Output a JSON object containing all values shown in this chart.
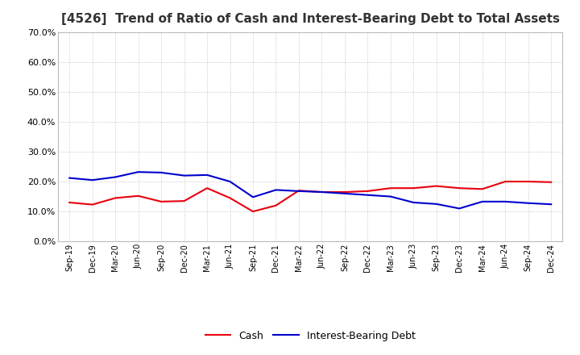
{
  "title": "[4526]  Trend of Ratio of Cash and Interest-Bearing Debt to Total Assets",
  "labels": [
    "Sep-19",
    "Dec-19",
    "Mar-20",
    "Jun-20",
    "Sep-20",
    "Dec-20",
    "Mar-21",
    "Jun-21",
    "Sep-21",
    "Dec-21",
    "Mar-22",
    "Jun-22",
    "Sep-22",
    "Dec-22",
    "Mar-23",
    "Jun-23",
    "Sep-23",
    "Dec-23",
    "Mar-24",
    "Jun-24",
    "Sep-24",
    "Dec-24"
  ],
  "cash": [
    0.13,
    0.123,
    0.145,
    0.152,
    0.133,
    0.135,
    0.178,
    0.145,
    0.1,
    0.12,
    0.17,
    0.165,
    0.165,
    0.168,
    0.178,
    0.178,
    0.185,
    0.178,
    0.175,
    0.2,
    0.2,
    0.198
  ],
  "interest_bearing_debt": [
    0.212,
    0.205,
    0.215,
    0.232,
    0.23,
    0.22,
    0.222,
    0.2,
    0.148,
    0.172,
    0.168,
    0.165,
    0.16,
    0.155,
    0.15,
    0.13,
    0.125,
    0.11,
    0.133,
    0.133,
    0.128,
    0.124
  ],
  "cash_color": "#e8000d",
  "debt_color": "#0000cc",
  "background_color": "#ffffff",
  "plot_bg_color": "#ffffff",
  "ylim": [
    0.0,
    0.7
  ],
  "yticks": [
    0.0,
    0.1,
    0.2,
    0.3,
    0.4,
    0.5,
    0.6,
    0.7
  ],
  "grid_color": "#aaaaaa",
  "title_fontsize": 11,
  "legend_cash": "Cash",
  "legend_debt": "Interest-Bearing Debt"
}
